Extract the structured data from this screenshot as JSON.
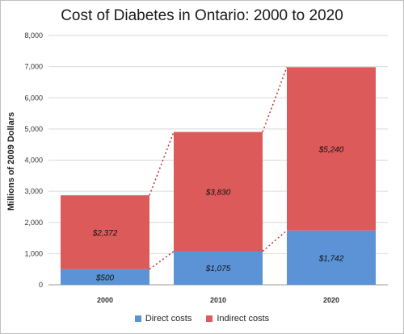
{
  "chart_data": {
    "type": "bar",
    "stacked": true,
    "title": "Cost of Diabetes in Ontario: 2000 to 2020",
    "xlabel": "",
    "ylabel": "Millions of 2009 Dollars",
    "ylim": [
      0,
      8000
    ],
    "yticks": [
      "0",
      "1,000",
      "2,000",
      "3,000",
      "4,000",
      "5,000",
      "6,000",
      "7,000",
      "8,000"
    ],
    "ytick_values": [
      0,
      1000,
      2000,
      3000,
      4000,
      5000,
      6000,
      7000,
      8000
    ],
    "categories": [
      "2000",
      "2010",
      "2020"
    ],
    "series": [
      {
        "name": "Direct costs",
        "color": "#5b93d6",
        "values": [
          500,
          1075,
          1742
        ],
        "labels": [
          "$500",
          "$1,075",
          "$1,742"
        ]
      },
      {
        "name": "Indirect costs",
        "color": "#dc5a5a",
        "values": [
          2372,
          3830,
          5240
        ],
        "labels": [
          "$2,372",
          "$3,830",
          "$5,240"
        ]
      }
    ],
    "grid": true,
    "legend": "bottom",
    "connector_lines": "dotted",
    "connector_color": "#c0302f"
  }
}
